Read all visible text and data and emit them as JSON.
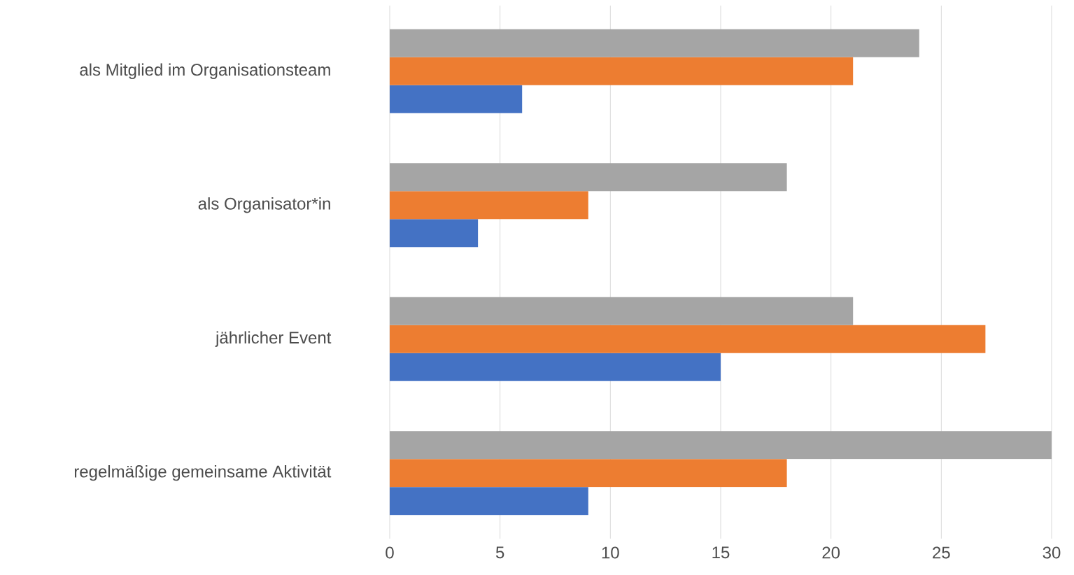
{
  "chart_data": {
    "type": "bar",
    "orientation": "horizontal",
    "categories": [
      "als Mitglied im Organisationsteam",
      "als Organisator*in",
      "jährlicher Event",
      "regelmäßige gemeinsame Aktivität"
    ],
    "series": [
      {
        "color": "#4472c4",
        "values": [
          6,
          4,
          15,
          9
        ]
      },
      {
        "color": "#ed7d31",
        "values": [
          21,
          9,
          27,
          18
        ]
      },
      {
        "color": "#a5a5a5",
        "values": [
          24,
          18,
          21,
          30
        ]
      }
    ],
    "xlim": [
      0,
      30
    ],
    "xticks": [
      0,
      5,
      10,
      15,
      20,
      25,
      30
    ],
    "grid": "x"
  }
}
